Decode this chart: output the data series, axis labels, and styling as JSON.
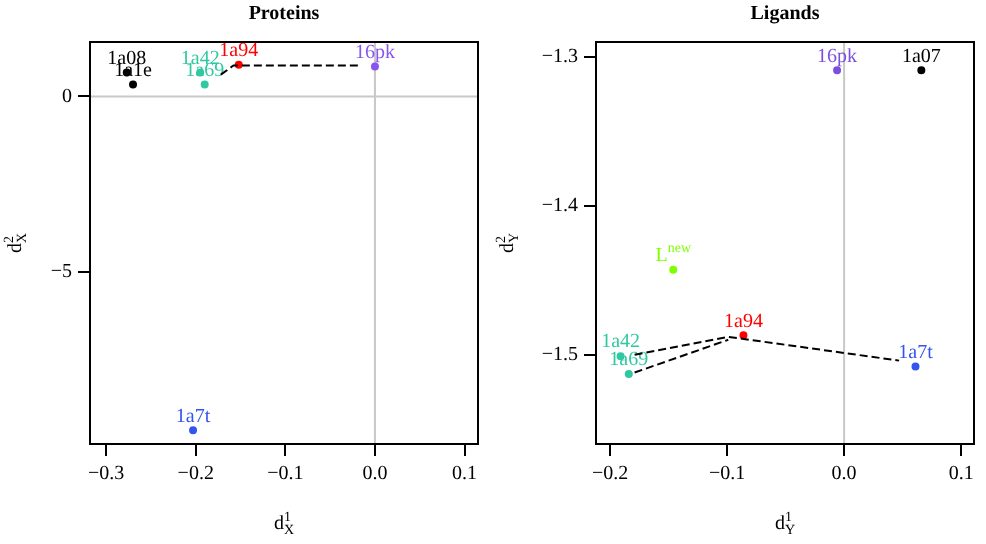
{
  "chart_data": [
    {
      "type": "scatter",
      "title": "Proteins",
      "xlabel": "d$^{1}$$_{X}$",
      "ylabel": "d$^{2}$$_{X}$",
      "marker": "circle",
      "grid": false,
      "xlim": [
        -0.318,
        0.115
      ],
      "ylim": [
        -9.89,
        1.55
      ],
      "xticks": [
        {
          "value": -0.3,
          "label": "−0.3"
        },
        {
          "value": -0.2,
          "label": "−0.2"
        },
        {
          "value": -0.1,
          "label": "−0.1"
        },
        {
          "value": 0,
          "label": "0.0"
        },
        {
          "value": 0.1,
          "label": "0.1"
        }
      ],
      "yticks": [
        {
          "value": -5,
          "label": "−5"
        },
        {
          "value": 0,
          "label": "0"
        }
      ],
      "ref_lines": [
        {
          "axis": "x",
          "value": 0,
          "color": "#c8c8c8"
        },
        {
          "axis": "y",
          "value": 0,
          "color": "#c8c8c8"
        }
      ],
      "series": [
        {
          "type": "line",
          "marker": "none",
          "line_style": "dashed",
          "color": "#000000",
          "x": [
            -0.172,
            -0.158,
            -0.016
          ],
          "values": [
            0.62,
            0.88,
            0.88
          ]
        },
        {
          "name": "1a08",
          "color": "#000000",
          "x": [
            -0.277
          ],
          "values": [
            0.68
          ]
        },
        {
          "name": "1a1e",
          "color": "#000000",
          "x": [
            -0.27
          ],
          "values": [
            0.34
          ]
        },
        {
          "name": "1a42",
          "color": "#30c8a0",
          "x": [
            -0.195
          ],
          "values": [
            0.68
          ]
        },
        {
          "name": "1a69",
          "color": "#30c8a0",
          "x": [
            -0.19
          ],
          "values": [
            0.34
          ]
        },
        {
          "name": "1a94",
          "color": "#ff0000",
          "x": [
            -0.152
          ],
          "values": [
            0.9
          ]
        },
        {
          "name": "16pk",
          "color": "#8855ee",
          "x": [
            0.0
          ],
          "values": [
            0.85
          ]
        },
        {
          "name": "1a7t",
          "color": "#3355ee",
          "x": [
            -0.203
          ],
          "values": [
            -9.5
          ]
        }
      ]
    },
    {
      "type": "scatter",
      "title": "Ligands",
      "xlabel": "d$^{1}$$_{Y}$",
      "ylabel": "d$^{2}$$_{Y}$",
      "marker": "circle",
      "grid": false,
      "xlim": [
        -0.212,
        0.111
      ],
      "ylim": [
        -1.56,
        -1.29
      ],
      "xticks": [
        {
          "value": -0.2,
          "label": "−0.2"
        },
        {
          "value": -0.1,
          "label": "−0.1"
        },
        {
          "value": 0,
          "label": "0.0"
        },
        {
          "value": 0.1,
          "label": "0.1"
        }
      ],
      "yticks": [
        {
          "value": -1.5,
          "label": "−1.5"
        },
        {
          "value": -1.4,
          "label": "−1.4"
        },
        {
          "value": -1.3,
          "label": "−1.3"
        }
      ],
      "ref_lines": [
        {
          "axis": "x",
          "value": 0,
          "color": "#c8c8c8"
        }
      ],
      "series": [
        {
          "type": "line",
          "marker": "none",
          "line_style": "dashed",
          "color": "#000000",
          "x": [
            -0.179,
            -0.099,
            0.047
          ],
          "values": [
            -1.5,
            -1.488,
            -1.504
          ]
        },
        {
          "type": "line",
          "marker": "none",
          "line_style": "dashed",
          "color": "#000000",
          "x": [
            -0.179,
            -0.099
          ],
          "values": [
            -1.512,
            -1.49
          ]
        },
        {
          "name": "16pk",
          "color": "#7a4fe0",
          "x": [
            -0.006
          ],
          "values": [
            -1.309
          ]
        },
        {
          "name": "1a07",
          "color": "#000000",
          "x": [
            0.066
          ],
          "values": [
            -1.309
          ]
        },
        {
          "name": "L$^{new}$",
          "color": "#7fff00",
          "x": [
            -0.146
          ],
          "values": [
            -1.443
          ]
        },
        {
          "name": "1a94",
          "color": "#ff0000",
          "x": [
            -0.086
          ],
          "values": [
            -1.487
          ]
        },
        {
          "name": "1a42",
          "color": "#30c8a0",
          "x": [
            -0.191
          ],
          "values": [
            -1.501
          ]
        },
        {
          "name": "1a69",
          "color": "#30c8a0",
          "x": [
            -0.184
          ],
          "values": [
            -1.513
          ]
        },
        {
          "name": "1a7t",
          "color": "#3355ee",
          "x": [
            0.061
          ],
          "values": [
            -1.508
          ]
        }
      ]
    }
  ]
}
